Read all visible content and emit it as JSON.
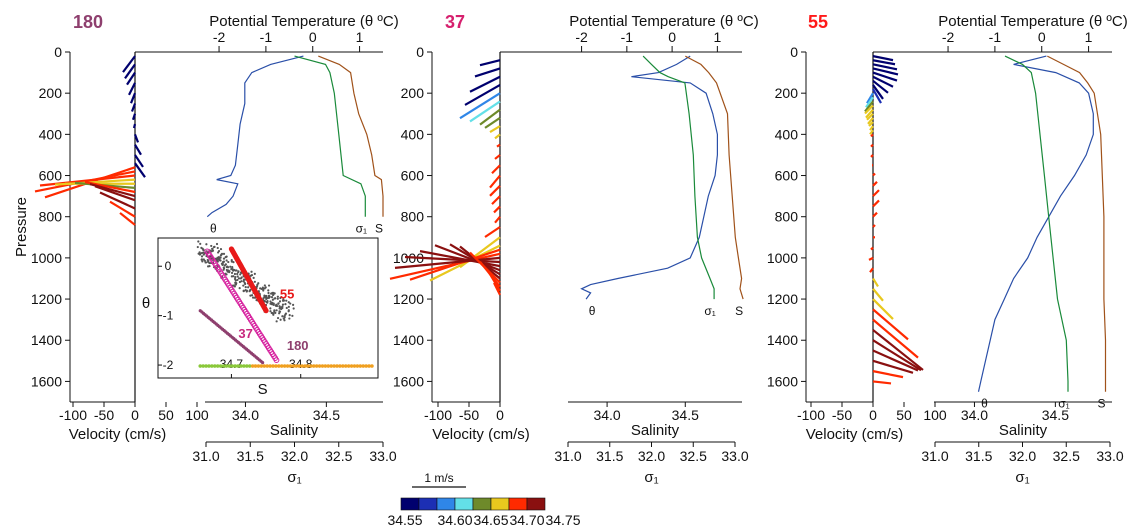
{
  "colors": {
    "theta": "#2a4fa8",
    "sigma": "#1a8a3a",
    "salinity": "#a0521a",
    "velocity_scale": [
      "#00006e",
      "#1c2fb4",
      "#2f86e8",
      "#63e0e8",
      "#6e8a2a",
      "#e8c81e",
      "#ff2a00",
      "#8a1010"
    ]
  },
  "chart_data": [
    {
      "type": "line",
      "station": "180",
      "station_color": "#8e3f6e",
      "top_axis_title": "Potential Temperature (θ ºC)",
      "theta_ticks": [
        "-2",
        "-1",
        "0",
        "1"
      ],
      "theta_lim": [
        -2.3,
        1.5
      ],
      "pressure_ticks": [
        "0",
        "200",
        "400",
        "600",
        "800",
        "1000",
        "1200",
        "1400",
        "1600"
      ],
      "pressure_lim": [
        0,
        1700
      ],
      "ylabel": "Pressure",
      "velocity_ticks": [
        "-100",
        "-50",
        "0",
        "50",
        "100"
      ],
      "velocity_xlabel": "Velocity (cm/s)",
      "salinity_ticks": [
        "34.0",
        "34.5"
      ],
      "salinity_label": "Salinity",
      "salinity_lim": [
        33.75,
        34.85
      ],
      "sigma_ticks": [
        "31.0",
        "31.5",
        "32.0",
        "32.5",
        "33.0"
      ],
      "sigma_label": "σ₁",
      "sigma_lim": [
        31.0,
        33.0
      ],
      "curve_labels": {
        "theta": "θ",
        "sigma": "σ₁",
        "salinity": "S"
      },
      "series": [
        {
          "var": "theta",
          "p": [
            20,
            60,
            100,
            150,
            250,
            350,
            450,
            550,
            600,
            620,
            640,
            700,
            740,
            780,
            800
          ],
          "values": [
            -0.2,
            -0.9,
            -1.3,
            -1.45,
            -1.45,
            -1.55,
            -1.6,
            -1.65,
            -1.75,
            -2.05,
            -1.6,
            -1.7,
            -1.85,
            -2.15,
            -2.25
          ]
        },
        {
          "var": "sigma",
          "p": [
            20,
            60,
            100,
            200,
            400,
            600,
            640,
            700,
            800
          ],
          "values": [
            32.0,
            32.35,
            32.4,
            32.45,
            32.5,
            32.55,
            32.75,
            32.8,
            32.8
          ]
        },
        {
          "var": "salinity",
          "p": [
            20,
            60,
            100,
            200,
            300,
            400,
            500,
            600,
            620,
            700,
            800
          ],
          "values": [
            34.45,
            34.58,
            34.65,
            34.67,
            34.7,
            34.75,
            34.78,
            34.8,
            34.84,
            34.85,
            34.85
          ]
        }
      ],
      "velocity": {
        "p": [
          20,
          60,
          100,
          150,
          200,
          250,
          300,
          350,
          400,
          450,
          500,
          540,
          560,
          580,
          600,
          620,
          640,
          660,
          680,
          700,
          720,
          760,
          800,
          840
        ],
        "u": [
          -12,
          -10,
          -8,
          -6,
          -4,
          -3,
          -2,
          -1,
          3,
          6,
          8,
          10,
          -90,
          -100,
          -95,
          -80,
          -70,
          -60,
          -50,
          -45,
          -40,
          -35,
          -25,
          -15
        ],
        "v": [
          -16,
          -14,
          -12,
          -12,
          -10,
          -8,
          -6,
          -4,
          -8,
          -10,
          -12,
          -14,
          -30,
          -20,
          -10,
          -5,
          0,
          5,
          10,
          12,
          14,
          16,
          15,
          12
        ],
        "s": [
          34.55,
          34.55,
          34.55,
          34.55,
          34.55,
          34.55,
          34.55,
          34.55,
          34.55,
          34.55,
          34.55,
          34.55,
          34.72,
          34.72,
          34.7,
          34.68,
          34.68,
          34.66,
          34.72,
          34.74,
          34.75,
          34.75,
          34.72,
          34.7
        ]
      },
      "inset": {
        "ylabel": "θ",
        "xlabel": "S",
        "x_ticks": [
          "34.7",
          "34.8"
        ],
        "y_ticks": [
          "0",
          "-1",
          "-2"
        ],
        "xlim": [
          34.62,
          34.9
        ],
        "ylim": [
          -2.1,
          0.45
        ],
        "labels": [
          "55",
          "37",
          "180"
        ],
        "label_colors": [
          "#e81a1a",
          "#c8287e",
          "#8e3f6e"
        ]
      }
    },
    {
      "type": "line",
      "station": "37",
      "station_color": "#d6206e",
      "top_axis_title": "Potential Temperature (θ ºC)",
      "theta_ticks": [
        "-2",
        "-1",
        "0",
        "1"
      ],
      "theta_lim": [
        -2.3,
        1.5
      ],
      "pressure_ticks": [
        "0",
        "200",
        "400",
        "600",
        "800",
        "1000",
        "1200",
        "1400",
        "1600"
      ],
      "pressure_lim": [
        0,
        1700
      ],
      "velocity_ticks": [
        "-100",
        "-50",
        "0"
      ],
      "velocity_xlabel": "Velocity (cm/s)",
      "salinity_ticks": [
        "34.0",
        "34.5"
      ],
      "salinity_label": "Salinity",
      "salinity_lim": [
        33.75,
        34.85
      ],
      "sigma_ticks": [
        "31.0",
        "31.5",
        "32.0",
        "32.5",
        "33.0"
      ],
      "sigma_label": "σ₁",
      "sigma_lim": [
        31.0,
        33.0
      ],
      "curve_labels": {
        "theta": "θ",
        "sigma": "σ₁",
        "salinity": "S"
      },
      "series": [
        {
          "var": "theta",
          "p": [
            20,
            60,
            100,
            120,
            150,
            200,
            300,
            400,
            500,
            600,
            700,
            800,
            900,
            1000,
            1050,
            1100,
            1130,
            1150,
            1170,
            1200
          ],
          "values": [
            0.4,
            0.1,
            -0.3,
            -0.9,
            0.4,
            0.75,
            0.9,
            1.0,
            1.0,
            0.95,
            0.8,
            0.7,
            0.6,
            0.4,
            -0.1,
            -1.2,
            -1.8,
            -2.0,
            -1.8,
            -1.9
          ]
        },
        {
          "var": "sigma",
          "p": [
            20,
            60,
            100,
            120,
            150,
            300,
            500,
            700,
            900,
            1000,
            1100,
            1150,
            1200
          ],
          "values": [
            31.9,
            32.0,
            32.1,
            32.2,
            32.4,
            32.45,
            32.5,
            32.52,
            32.55,
            32.6,
            32.7,
            32.75,
            32.75
          ]
        },
        {
          "var": "salinity",
          "p": [
            20,
            60,
            100,
            150,
            300,
            500,
            700,
            900,
            1000,
            1100,
            1150,
            1200
          ],
          "values": [
            34.5,
            34.6,
            34.65,
            34.7,
            34.77,
            34.78,
            34.8,
            34.82,
            34.84,
            34.86,
            34.85,
            34.87
          ]
        }
      ],
      "velocity": {
        "p": [
          40,
          80,
          120,
          160,
          200,
          240,
          280,
          320,
          360,
          400,
          450,
          500,
          550,
          600,
          650,
          700,
          750,
          800,
          850,
          900,
          940,
          960,
          980,
          1000,
          1020,
          1040,
          1060,
          1080,
          1100,
          1120,
          1140,
          1160,
          1180
        ],
        "u": [
          -20,
          -25,
          -30,
          -35,
          -40,
          -30,
          -20,
          -15,
          -10,
          -5,
          -3,
          -5,
          -8,
          -10,
          -10,
          -8,
          -6,
          -5,
          -15,
          -40,
          -70,
          -90,
          -110,
          -105,
          -95,
          -80,
          -65,
          -50,
          -40,
          -30,
          -20,
          -12,
          -6
        ],
        "v": [
          -5,
          -8,
          -15,
          -20,
          -25,
          -20,
          -15,
          -10,
          -6,
          -4,
          -2,
          -4,
          -8,
          -12,
          -10,
          -8,
          -6,
          -6,
          -10,
          -30,
          -35,
          -30,
          -25,
          -10,
          5,
          15,
          25,
          30,
          32,
          30,
          25,
          20,
          12
        ],
        "s": [
          34.55,
          34.55,
          34.55,
          34.57,
          34.6,
          34.63,
          34.65,
          34.67,
          34.68,
          34.68,
          34.72,
          34.72,
          34.72,
          34.72,
          34.72,
          34.72,
          34.72,
          34.72,
          34.7,
          34.69,
          34.69,
          34.7,
          34.72,
          34.73,
          34.74,
          34.75,
          34.75,
          34.75,
          34.74,
          34.72,
          34.72,
          34.7,
          34.7
        ]
      }
    },
    {
      "type": "line",
      "station": "55",
      "station_color": "#ff1a1a",
      "top_axis_title": "Potential Temperature (θ ºC)",
      "theta_ticks": [
        "-2",
        "-1",
        "0",
        "1"
      ],
      "theta_lim": [
        -2.3,
        1.5
      ],
      "pressure_ticks": [
        "0",
        "200",
        "400",
        "600",
        "800",
        "1000",
        "1200",
        "1400",
        "1600"
      ],
      "pressure_lim": [
        0,
        1700
      ],
      "velocity_ticks": [
        "-100",
        "-50",
        "0",
        "50",
        "100"
      ],
      "velocity_xlabel": "Velocity (cm/s)",
      "salinity_ticks": [
        "34.0",
        "34.5"
      ],
      "salinity_label": "Salinity",
      "salinity_lim": [
        33.75,
        34.85
      ],
      "sigma_ticks": [
        "31.0",
        "31.5",
        "32.0",
        "32.5",
        "33.0"
      ],
      "sigma_label": "σ₁",
      "sigma_lim": [
        31.0,
        33.0
      ],
      "curve_labels": {
        "theta": "θ",
        "sigma": "σ₁",
        "salinity": "S"
      },
      "series": [
        {
          "var": "theta",
          "p": [
            20,
            60,
            100,
            150,
            200,
            300,
            400,
            500,
            600,
            700,
            800,
            900,
            1000,
            1100,
            1200,
            1300,
            1400,
            1500,
            1600,
            1650
          ],
          "values": [
            0.1,
            -0.6,
            0.3,
            0.8,
            1.0,
            1.1,
            1.1,
            0.95,
            0.7,
            0.4,
            0.15,
            -0.1,
            -0.3,
            -0.6,
            -0.8,
            -1.0,
            -1.1,
            -1.2,
            -1.3,
            -1.35
          ]
        },
        {
          "var": "sigma",
          "p": [
            20,
            60,
            100,
            200,
            400,
            600,
            800,
            1000,
            1200,
            1400,
            1600,
            1650
          ],
          "values": [
            31.8,
            32.0,
            32.1,
            32.15,
            32.2,
            32.25,
            32.3,
            32.35,
            32.4,
            32.5,
            32.52,
            32.52
          ]
        },
        {
          "var": "salinity",
          "p": [
            20,
            60,
            100,
            150,
            200,
            400,
            600,
            800,
            1000,
            1200,
            1400,
            1600,
            1650
          ],
          "values": [
            34.45,
            34.55,
            34.65,
            34.7,
            34.74,
            34.78,
            34.79,
            34.8,
            34.8,
            34.8,
            34.81,
            34.81,
            34.81
          ]
        }
      ],
      "velocity": {
        "p": [
          20,
          40,
          60,
          80,
          100,
          120,
          140,
          160,
          180,
          200,
          220,
          240,
          260,
          280,
          300,
          320,
          340,
          360,
          380,
          400,
          450,
          500,
          550,
          600,
          650,
          700,
          750,
          800,
          850,
          900,
          950,
          1000,
          1050,
          1100,
          1150,
          1200,
          1250,
          1300,
          1350,
          1400,
          1450,
          1500,
          1550,
          1600
        ],
        "u": [
          20,
          22,
          24,
          25,
          24,
          20,
          15,
          10,
          8,
          -6,
          -7,
          -8,
          -8,
          -7,
          -6,
          -5,
          -4,
          -3,
          -3,
          -2,
          -2,
          -2,
          -1,
          2,
          4,
          6,
          6,
          4,
          2,
          2,
          -2,
          -4,
          -3,
          5,
          10,
          20,
          35,
          45,
          50,
          48,
          45,
          40,
          30,
          18
        ],
        "v": [
          -4,
          -4,
          -5,
          -6,
          -8,
          -10,
          -12,
          -14,
          -14,
          -10,
          -10,
          -10,
          -8,
          -8,
          -6,
          -6,
          -4,
          -4,
          -4,
          -2,
          -2,
          -2,
          0,
          2,
          4,
          6,
          6,
          4,
          2,
          0,
          -2,
          -2,
          -4,
          -8,
          -12,
          -20,
          -30,
          -38,
          -40,
          -30,
          -20,
          -12,
          -6,
          -2
        ],
        "s": [
          34.55,
          34.55,
          34.55,
          34.55,
          34.55,
          34.55,
          34.55,
          34.57,
          34.58,
          34.6,
          34.63,
          34.67,
          34.68,
          34.68,
          34.68,
          34.68,
          34.68,
          34.68,
          34.68,
          34.72,
          34.72,
          34.72,
          34.72,
          34.72,
          34.72,
          34.72,
          34.72,
          34.72,
          34.72,
          34.72,
          34.7,
          34.7,
          34.7,
          34.68,
          34.68,
          34.69,
          34.7,
          34.72,
          34.74,
          34.75,
          34.75,
          34.75,
          34.72,
          34.7
        ]
      }
    }
  ],
  "scale_bar_label": "1 m/s",
  "colorbar_ticks": [
    "34.55",
    "34.60",
    "34.65",
    "34.70",
    "34.75"
  ]
}
